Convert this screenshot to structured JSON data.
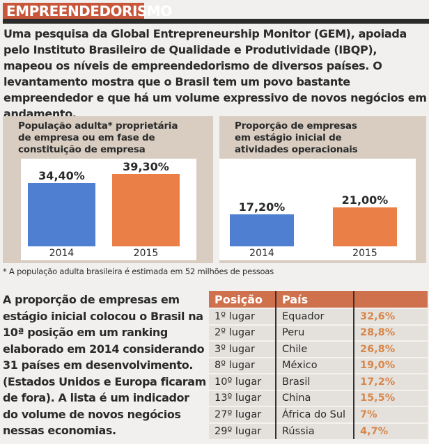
{
  "section_title": "EMPREENDEDORISMO",
  "intro": "Uma pesquisa da Global Entrepreneurship Monitor (GEM), apoiada pelo Instituto Brasileiro de Qualidade e Produtividade (IBQP), mapeou os níveis de empreendedorismo de diversos países. O levantamento mostra que o Brasil tem um povo bastante empreendedor e que há um volume expressivo de novos negócios em andamento.",
  "colors": {
    "bar_2014": "#4f7fd0",
    "bar_2015": "#ea8048",
    "accent": "#c8563a"
  },
  "chart_data": [
    {
      "type": "bar",
      "title": "População adulta* proprietária de empresa ou em fase de constituição de empresa",
      "categories": [
        "2014",
        "2015"
      ],
      "values": [
        34.4,
        39.3
      ],
      "labels": [
        "34,40%",
        "39,30%"
      ]
    },
    {
      "type": "bar",
      "title": "Proporção de empresas em estágio inicial de atividades operacionais",
      "categories": [
        "2014",
        "2015"
      ],
      "values": [
        17.2,
        21.0
      ],
      "labels": [
        "17,20%",
        "21,00%"
      ]
    }
  ],
  "footnote": "* A população adulta brasileira é estimada em 52 milhões de pessoas",
  "body": "A proporção de empresas em estágio inicial colocou o Brasil na 10ª posição em um ranking elaborado em 2014 considerando 31 países em desenvolvimento. (Estados Unidos e Europa ficaram de fora). A lista é um indicador do volume de novos negócios nessas economias.",
  "table": {
    "headers": [
      "Posição",
      "País",
      ""
    ],
    "rows": [
      [
        "1º lugar",
        "Equador",
        "32,6%"
      ],
      [
        "2º lugar",
        "Peru",
        "28,8%"
      ],
      [
        "3º lugar",
        "Chile",
        "26,8%"
      ],
      [
        "8º lugar",
        "México",
        "19,0%"
      ],
      [
        "10º lugar",
        "Brasil",
        "17,2%"
      ],
      [
        "13º lugar",
        "China",
        "15,5%"
      ],
      [
        "27º lugar",
        "África do Sul",
        "7%"
      ],
      [
        "29º lugar",
        "Rússia",
        "4,7%"
      ]
    ]
  }
}
